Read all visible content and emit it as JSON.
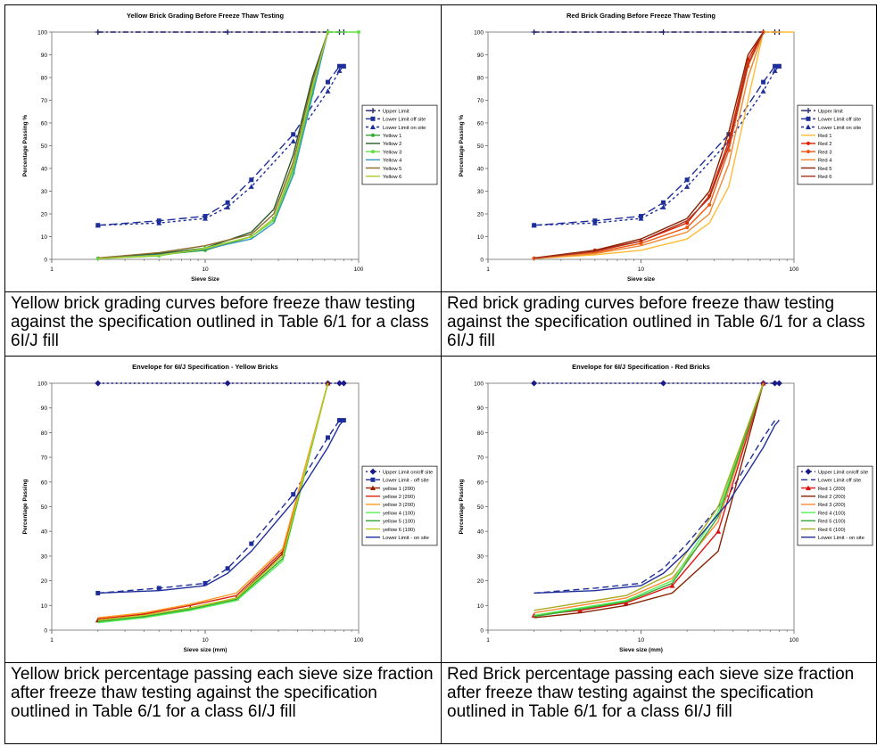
{
  "captions": [
    "Yellow brick grading curves before freeze thaw testing against the specification outlined in Table 6/1 for a class 6I/J fill",
    "Red brick grading curves before freeze thaw testing against the specification outlined in Table 6/1 for a class 6I/J fill",
    "Yellow brick percentage passing each sieve size fraction after freeze thaw testing against the specification outlined in Table 6/1 for a class 6I/J fill",
    "Red Brick percentage passing each sieve size fraction after freeze thaw testing against the specification outlined in Table 6/1 for a class 6I/J fill"
  ],
  "chart_data": [
    {
      "type": "line",
      "title": "Yellow Brick Grading Before Freeze Thaw Testing",
      "xlabel": "Sieve Size",
      "ylabel": "Percentage Passing %",
      "xscale": "log",
      "xlim": [
        1,
        100
      ],
      "ylim": [
        0,
        100
      ],
      "xticks": [
        1,
        10,
        100
      ],
      "yticks": [
        0,
        10,
        20,
        30,
        40,
        50,
        60,
        70,
        80,
        90,
        100
      ],
      "legend_position": "right",
      "series": [
        {
          "name": "Upper Limit",
          "color": "#1a1a66",
          "dash": "6,3,2,3",
          "marker": "plus",
          "x": [
            2,
            14,
            63,
            75,
            80
          ],
          "y": [
            100,
            100,
            100,
            100,
            100
          ]
        },
        {
          "name": "Lower Limit off site",
          "color": "#1f2f9a",
          "dash": "9,4",
          "marker": "square",
          "x": [
            2,
            5,
            10,
            14,
            20,
            37.5,
            63,
            75,
            80
          ],
          "y": [
            15,
            17,
            19,
            25,
            35,
            55,
            78,
            85,
            85
          ]
        },
        {
          "name": "Lower Limit on site",
          "color": "#1f2f9a",
          "dash": "3,3",
          "marker": "triangle",
          "x": [
            2,
            5,
            10,
            14,
            20,
            37.5,
            63,
            75,
            80
          ],
          "y": [
            15,
            16,
            18,
            23,
            32,
            52,
            74,
            83,
            85
          ]
        },
        {
          "name": "Yellow 1",
          "color": "#33aa33",
          "dash": "",
          "marker": "dot",
          "x": [
            2,
            5,
            10,
            20,
            28,
            37.5,
            50,
            63
          ],
          "y": [
            0.5,
            2,
            4,
            10,
            18,
            40,
            75,
            100
          ]
        },
        {
          "name": "Yellow 2",
          "color": "#2a5a2a",
          "dash": "",
          "marker": "none",
          "x": [
            2,
            5,
            10,
            20,
            28,
            37.5,
            50,
            63
          ],
          "y": [
            0.5,
            2.5,
            5,
            12,
            22,
            46,
            80,
            100
          ]
        },
        {
          "name": "Yellow 3",
          "color": "#66dd44",
          "dash": "",
          "marker": "dot",
          "x": [
            2,
            5,
            10,
            20,
            28,
            37.5,
            50,
            63,
            100
          ],
          "y": [
            0.3,
            1.5,
            5,
            10,
            17,
            38,
            73,
            100,
            100
          ]
        },
        {
          "name": "Yellow 4",
          "color": "#3399bb",
          "dash": "",
          "marker": "none",
          "x": [
            2,
            5,
            10,
            20,
            28,
            37.5,
            50,
            63
          ],
          "y": [
            0.4,
            2,
            4.5,
            9,
            16,
            37,
            72,
            100
          ]
        },
        {
          "name": "Yellow 5",
          "color": "#8a6a2a",
          "dash": "",
          "marker": "none",
          "x": [
            2,
            5,
            10,
            20,
            28,
            37.5,
            50,
            63
          ],
          "y": [
            0.6,
            3,
            6,
            11,
            20,
            43,
            78,
            100
          ]
        },
        {
          "name": "Yellow 6",
          "color": "#aacc33",
          "dash": "",
          "marker": "none",
          "x": [
            2,
            5,
            10,
            20,
            28,
            37.5,
            50,
            63
          ],
          "y": [
            0.3,
            1.8,
            4.8,
            10,
            18,
            41,
            76,
            100
          ]
        }
      ]
    },
    {
      "type": "line",
      "title": "Red Brick Grading Before Freeze Thaw Testing",
      "xlabel": "Sieve size",
      "ylabel": "Percentage Passing %",
      "xscale": "log",
      "xlim": [
        1,
        100
      ],
      "ylim": [
        0,
        100
      ],
      "xticks": [
        1,
        10,
        100
      ],
      "yticks": [
        0,
        10,
        20,
        30,
        40,
        50,
        60,
        70,
        80,
        90,
        100
      ],
      "legend_position": "right",
      "series": [
        {
          "name": "Upper limit",
          "color": "#1a1a66",
          "dash": "6,3,2,3",
          "marker": "plus",
          "x": [
            2,
            14,
            63,
            75,
            80
          ],
          "y": [
            100,
            100,
            100,
            100,
            100
          ]
        },
        {
          "name": "Lower Limit off site",
          "color": "#1f2f9a",
          "dash": "9,4",
          "marker": "square",
          "x": [
            2,
            5,
            10,
            14,
            20,
            37.5,
            63,
            75,
            80
          ],
          "y": [
            15,
            17,
            19,
            25,
            35,
            55,
            78,
            85,
            85
          ]
        },
        {
          "name": "Lower Limit on site",
          "color": "#1f2f9a",
          "dash": "3,3",
          "marker": "triangle",
          "x": [
            2,
            5,
            10,
            14,
            20,
            37.5,
            63,
            75,
            80
          ],
          "y": [
            15,
            16,
            18,
            23,
            32,
            52,
            74,
            83,
            85
          ]
        },
        {
          "name": "Red 1",
          "color": "#ffbb33",
          "dash": "",
          "marker": "none",
          "x": [
            2,
            5,
            10,
            20,
            28,
            37.5,
            50,
            63,
            100
          ],
          "y": [
            0.3,
            2,
            4,
            9,
            16,
            32,
            70,
            100,
            100
          ]
        },
        {
          "name": "Red 2",
          "color": "#dd2200",
          "dash": "",
          "marker": "dot",
          "x": [
            2,
            5,
            10,
            20,
            28,
            37.5,
            50,
            63
          ],
          "y": [
            0.5,
            4,
            8,
            16,
            28,
            52,
            88,
            100
          ]
        },
        {
          "name": "Red 3",
          "color": "#ee5511",
          "dash": "",
          "marker": "dot",
          "x": [
            2,
            5,
            10,
            20,
            28,
            37.5,
            50,
            63
          ],
          "y": [
            0.5,
            3,
            7,
            14,
            24,
            48,
            85,
            100
          ]
        },
        {
          "name": "Red 4",
          "color": "#ee8833",
          "dash": "",
          "marker": "none",
          "x": [
            2,
            5,
            10,
            20,
            28,
            37.5,
            50,
            63
          ],
          "y": [
            0.4,
            2.5,
            6,
            12,
            20,
            42,
            80,
            100
          ]
        },
        {
          "name": "Red 5",
          "color": "#882200",
          "dash": "",
          "marker": "none",
          "x": [
            2,
            5,
            10,
            20,
            28,
            37.5,
            50,
            63
          ],
          "y": [
            0.6,
            4,
            9,
            18,
            30,
            56,
            90,
            100
          ]
        },
        {
          "name": "Red 6",
          "color": "#aa3322",
          "dash": "",
          "marker": "none",
          "x": [
            2,
            5,
            10,
            20,
            28,
            37.5,
            50,
            63
          ],
          "y": [
            0.5,
            3.5,
            8,
            17,
            27,
            50,
            86,
            100
          ]
        }
      ]
    },
    {
      "type": "line",
      "title": "Envelope for 6I/J Specification - Yellow Bricks",
      "xlabel": "Sieve size (mm)",
      "ylabel": "Percentage Passing",
      "xscale": "log",
      "xlim": [
        1,
        100
      ],
      "ylim": [
        0,
        100
      ],
      "xticks": [
        1,
        10,
        100
      ],
      "yticks": [
        0,
        10,
        20,
        30,
        40,
        50,
        60,
        70,
        80,
        90,
        100
      ],
      "legend_position": "right",
      "series": [
        {
          "name": "Upper Limit on/off site",
          "color": "#1a1a88",
          "dash": "2,3",
          "marker": "diamond",
          "x": [
            2,
            14,
            63,
            75,
            80
          ],
          "y": [
            100,
            100,
            100,
            100,
            100
          ]
        },
        {
          "name": "Lower Limit - off site",
          "color": "#1f2f9a",
          "dash": "7,4",
          "marker": "square",
          "x": [
            2,
            5,
            10,
            14,
            20,
            37.5,
            63,
            75,
            80
          ],
          "y": [
            15,
            17,
            19,
            25,
            35,
            55,
            78,
            85,
            85
          ]
        },
        {
          "name": "yellow 1 (200)",
          "color": "#992200",
          "dash": "",
          "marker": "triangle",
          "x": [
            2,
            4,
            8,
            16,
            32,
            63
          ],
          "y": [
            4,
            6,
            9,
            13,
            31,
            100
          ]
        },
        {
          "name": "yellow 2 (200)",
          "color": "#dd2211",
          "dash": "",
          "marker": "none",
          "x": [
            2,
            4,
            8,
            16,
            32,
            63
          ],
          "y": [
            4.5,
            6.5,
            10,
            14,
            32,
            100
          ]
        },
        {
          "name": "yellow 3 (200)",
          "color": "#ff9922",
          "dash": "",
          "marker": "none",
          "x": [
            2,
            4,
            8,
            16,
            32,
            63
          ],
          "y": [
            5,
            7,
            10.5,
            15,
            33,
            100
          ]
        },
        {
          "name": "yellow 4 (100)",
          "color": "#55ee55",
          "dash": "",
          "marker": "none",
          "x": [
            2,
            4,
            8,
            16,
            32,
            63
          ],
          "y": [
            3,
            5,
            8,
            12,
            28,
            100
          ]
        },
        {
          "name": "yellow 5 (100)",
          "color": "#33aa33",
          "dash": "",
          "marker": "none",
          "x": [
            2,
            4,
            8,
            16,
            32,
            63
          ],
          "y": [
            3.5,
            5.5,
            8.5,
            12.5,
            29,
            100
          ]
        },
        {
          "name": "yellow 6 (100)",
          "color": "#bbcc22",
          "dash": "",
          "marker": "none",
          "x": [
            2,
            4,
            8,
            16,
            32,
            63
          ],
          "y": [
            4,
            6,
            9,
            13,
            30,
            100
          ]
        },
        {
          "name": "Lower Limit - on site",
          "color": "#1f2f9a",
          "dash": "",
          "marker": "none",
          "x": [
            2,
            5,
            10,
            14,
            20,
            37.5,
            63,
            75,
            80
          ],
          "y": [
            15,
            16,
            18,
            23,
            32,
            52,
            74,
            83,
            85
          ]
        }
      ]
    },
    {
      "type": "line",
      "title": "Envelope for 6I/J Specification - Red Bricks",
      "xlabel": "Sieve size (mm)",
      "ylabel": "Percentage Passing",
      "xscale": "log",
      "xlim": [
        1,
        100
      ],
      "ylim": [
        0,
        100
      ],
      "xticks": [
        1,
        10,
        100
      ],
      "yticks": [
        0,
        10,
        20,
        30,
        40,
        50,
        60,
        70,
        80,
        90,
        100
      ],
      "legend_position": "right",
      "series": [
        {
          "name": "Upper Limit on/off site",
          "color": "#1a1a88",
          "dash": "2,3",
          "marker": "diamond",
          "x": [
            2,
            14,
            63,
            75,
            80
          ],
          "y": [
            100,
            100,
            100,
            100,
            100
          ]
        },
        {
          "name": "Lower Limit off site",
          "color": "#1f2f9a",
          "dash": "7,4",
          "marker": "none",
          "x": [
            2,
            5,
            10,
            14,
            20,
            37.5,
            63,
            75,
            80
          ],
          "y": [
            15,
            17,
            19,
            25,
            35,
            55,
            78,
            85,
            85
          ]
        },
        {
          "name": "Red 1 (200)",
          "color": "#dd1111",
          "dash": "",
          "marker": "triangle",
          "x": [
            2,
            4,
            8,
            16,
            32,
            63
          ],
          "y": [
            6,
            8,
            11,
            18,
            40,
            100
          ]
        },
        {
          "name": "Red 2 (200)",
          "color": "#882200",
          "dash": "",
          "marker": "none",
          "x": [
            2,
            4,
            8,
            16,
            32,
            63
          ],
          "y": [
            5,
            7,
            10,
            15,
            32,
            100
          ]
        },
        {
          "name": "Red 3 (200)",
          "color": "#ff8833",
          "dash": "",
          "marker": "none",
          "x": [
            2,
            4,
            8,
            16,
            32,
            63
          ],
          "y": [
            7,
            10,
            13,
            21,
            44,
            100
          ]
        },
        {
          "name": "Red 4 (100)",
          "color": "#55ee55",
          "dash": "",
          "marker": "none",
          "x": [
            2,
            4,
            8,
            16,
            32,
            63
          ],
          "y": [
            6,
            9,
            12,
            20,
            48,
            100
          ]
        },
        {
          "name": "Red 5 (100)",
          "color": "#33aa33",
          "dash": "",
          "marker": "none",
          "x": [
            2,
            4,
            8,
            16,
            32,
            63
          ],
          "y": [
            5.5,
            8.5,
            11.5,
            19,
            46,
            100
          ]
        },
        {
          "name": "Red 6 (100)",
          "color": "#aaaa22",
          "dash": "",
          "marker": "none",
          "x": [
            2,
            4,
            8,
            16,
            32,
            63
          ],
          "y": [
            8,
            11,
            14,
            23,
            50,
            100
          ]
        },
        {
          "name": "Lower Limit - on site",
          "color": "#1f2f9a",
          "dash": "",
          "marker": "none",
          "x": [
            2,
            5,
            10,
            14,
            20,
            37.5,
            63,
            75,
            80
          ],
          "y": [
            15,
            16,
            18,
            23,
            32,
            52,
            74,
            83,
            85
          ]
        }
      ]
    }
  ]
}
